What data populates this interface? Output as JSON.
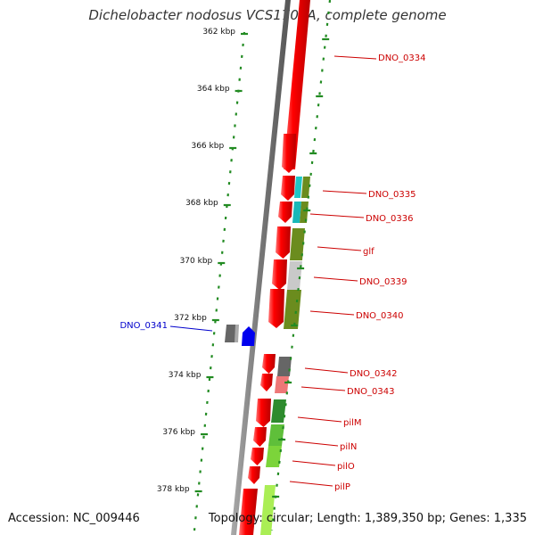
{
  "title": "Dichelobacter nodosus VCS1703A, complete genome",
  "footer": {
    "accession": "Accession: NC_009446",
    "summary": "Topology: circular; Length: 1,389,350 bp; Genes: 1,335"
  },
  "colors": {
    "forward_cds": "#ff0000",
    "reverse_cds": "#0000ee",
    "ruler_tick": "#228b22",
    "backbone": "#7a7a7a",
    "forward_label": "#cc0000",
    "reverse_label": "#0000cc",
    "tick_label": "#111111"
  },
  "ruler": {
    "unit": "kbp",
    "ticks": [
      {
        "label": "362 kbp"
      },
      {
        "label": "364 kbp"
      },
      {
        "label": "366 kbp"
      },
      {
        "label": "368 kbp"
      },
      {
        "label": "370 kbp"
      },
      {
        "label": "372 kbp"
      },
      {
        "label": "374 kbp"
      },
      {
        "label": "376 kbp"
      },
      {
        "label": "378 kbp"
      }
    ]
  },
  "genes": [
    {
      "name": "DNO_0334",
      "strand": "+"
    },
    {
      "name": "DNO_0335",
      "strand": "+"
    },
    {
      "name": "DNO_0336",
      "strand": "+"
    },
    {
      "name": "glf",
      "strand": "+"
    },
    {
      "name": "DNO_0339",
      "strand": "+"
    },
    {
      "name": "DNO_0340",
      "strand": "+"
    },
    {
      "name": "DNO_0341",
      "strand": "-"
    },
    {
      "name": "DNO_0342",
      "strand": "+"
    },
    {
      "name": "DNO_0343",
      "strand": "+"
    },
    {
      "name": "pilM",
      "strand": "+"
    },
    {
      "name": "pilN",
      "strand": "+"
    },
    {
      "name": "pilO",
      "strand": "+"
    },
    {
      "name": "pilP",
      "strand": "+"
    }
  ]
}
